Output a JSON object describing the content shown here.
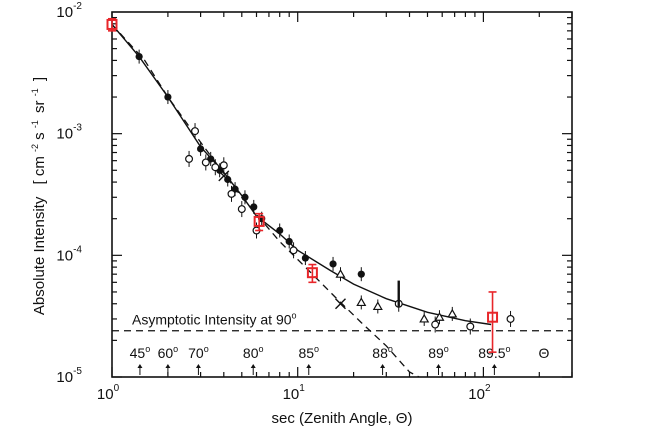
{
  "chart_data": {
    "type": "scatter",
    "x_scale": "log",
    "y_scale": "log",
    "xlim": [
      1,
      300
    ],
    "ylim": [
      1e-05,
      0.01
    ],
    "xlabel": "sec (Zenith Angle, Θ)",
    "ylabel_main": "Absolute Intensity",
    "ylabel_units": "[ cm",
    "ylabel_units_parts": [
      "[ cm",
      "-2",
      "s",
      "-1",
      "sr",
      "-1",
      "]"
    ],
    "x_ticks": [
      {
        "base": "10",
        "exp": "0",
        "value": 1
      },
      {
        "base": "10",
        "exp": "1",
        "value": 10
      },
      {
        "base": "10",
        "exp": "2",
        "value": 100
      }
    ],
    "y_ticks": [
      {
        "base": "10",
        "exp": "-5",
        "value": 1e-05
      },
      {
        "base": "10",
        "exp": "-4",
        "value": 0.0001
      },
      {
        "base": "10",
        "exp": "-3",
        "value": 0.001
      },
      {
        "base": "10",
        "exp": "-2",
        "value": 0.01
      }
    ],
    "asymptote": {
      "label": "Asymptotic Intensity at 90",
      "deg": "o",
      "value": 2.4e-05
    },
    "angle_labels": [
      {
        "deg": "45",
        "sec": 1.414
      },
      {
        "deg": "60",
        "sec": 2.0
      },
      {
        "deg": "70",
        "sec": 2.92
      },
      {
        "deg": "80",
        "sec": 5.76
      },
      {
        "deg": "85",
        "sec": 11.47
      },
      {
        "deg": "88",
        "sec": 28.65
      },
      {
        "deg": "89",
        "sec": 57.3
      },
      {
        "deg": "89.5",
        "sec": 114.6
      }
    ],
    "theta_symbol": "Θ",
    "series": [
      {
        "name": "filled-circles",
        "marker": "filled-circle",
        "points": [
          [
            1.4,
            0.0043
          ],
          [
            2.0,
            0.002
          ],
          [
            3.0,
            0.00075
          ],
          [
            3.4,
            0.00062
          ],
          [
            3.8,
            0.0005
          ],
          [
            4.2,
            0.00042
          ],
          [
            4.6,
            0.00035
          ],
          [
            5.2,
            0.0003
          ],
          [
            5.8,
            0.00025
          ],
          [
            6.4,
            0.0002
          ],
          [
            8.0,
            0.00016
          ],
          [
            9.0,
            0.00013
          ],
          [
            11.0,
            9.5e-05
          ],
          [
            15.5,
            8.5e-05
          ],
          [
            22.0,
            7e-05
          ]
        ]
      },
      {
        "name": "open-circles",
        "marker": "open-circle",
        "points": [
          [
            2.8,
            0.00105
          ],
          [
            2.6,
            0.00062
          ],
          [
            3.2,
            0.00058
          ],
          [
            3.6,
            0.00053
          ],
          [
            4.0,
            0.00055
          ],
          [
            4.4,
            0.00032
          ],
          [
            5.0,
            0.00024
          ],
          [
            6.0,
            0.00016
          ],
          [
            9.5,
            0.00011
          ],
          [
            35.0,
            4e-05
          ],
          [
            55.0,
            2.7e-05
          ],
          [
            85.0,
            2.6e-05
          ],
          [
            140.0,
            3e-05
          ]
        ]
      },
      {
        "name": "triangles",
        "marker": "triangle",
        "points": [
          [
            17.0,
            7e-05
          ],
          [
            22.0,
            4.1e-05
          ],
          [
            27.0,
            3.8e-05
          ],
          [
            48.0,
            3e-05
          ],
          [
            58.0,
            3.1e-05
          ],
          [
            68.0,
            3.3e-05
          ]
        ]
      },
      {
        "name": "crosses",
        "marker": "cross",
        "points": [
          [
            4.0,
            0.00045
          ],
          [
            17.0,
            4e-05
          ]
        ]
      },
      {
        "name": "red-squares",
        "marker": "open-square",
        "color": "#e8262a",
        "points": [
          [
            1.0,
            0.0079
          ],
          [
            6.2,
            0.00019
          ],
          [
            12.0,
            7.2e-05
          ],
          [
            112.0,
            3.1e-05
          ]
        ],
        "errors": [
          [
            0.0009,
            0.0009
          ],
          [
            3e-05,
            3e-05
          ],
          [
            1.2e-05,
            1.2e-05
          ],
          [
            1.5e-05,
            1.9e-05
          ]
        ]
      }
    ],
    "fit_curve": [
      [
        1.0,
        0.0079
      ],
      [
        1.4,
        0.0043
      ],
      [
        2.0,
        0.002
      ],
      [
        3.0,
        0.00078
      ],
      [
        4.0,
        0.00048
      ],
      [
        5.0,
        0.00031
      ],
      [
        6.0,
        0.00021
      ],
      [
        8.0,
        0.00015
      ],
      [
        10.0,
        0.00011
      ],
      [
        15.0,
        7.5e-05
      ],
      [
        20.0,
        5.8e-05
      ],
      [
        30.0,
        4.4e-05
      ],
      [
        50.0,
        3.4e-05
      ],
      [
        80.0,
        2.9e-05
      ],
      [
        110.0,
        2.7e-05
      ]
    ],
    "dashed_curve": [
      [
        1.0,
        0.0079
      ],
      [
        1.5,
        0.004
      ],
      [
        2.0,
        0.002
      ],
      [
        3.0,
        0.00085
      ],
      [
        5.0,
        0.0003
      ],
      [
        8.0,
        0.00013
      ],
      [
        12.0,
        7e-05
      ],
      [
        16.0,
        4.5e-05
      ],
      [
        22.0,
        2.8e-05
      ],
      [
        30.0,
        1.8e-05
      ],
      [
        40.0,
        1.1e-05
      ],
      [
        45.0,
        1e-05
      ]
    ],
    "colors": {
      "axis": "#111111",
      "highlight": "#e8262a"
    }
  }
}
